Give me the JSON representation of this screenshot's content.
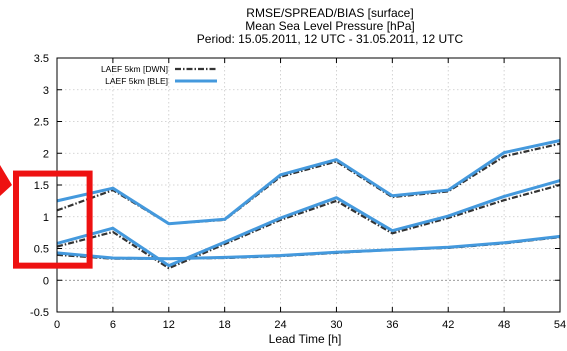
{
  "chart_data": {
    "type": "line",
    "title_lines": [
      "RMSE/SPREAD/BIAS [surface]",
      "Mean Sea Level Pressure [hPa]",
      "Period: 15.05.2011, 12 UTC - 31.05.2011, 12 UTC"
    ],
    "xlabel": "Lead Time [h]",
    "ylabel": "",
    "x": [
      0,
      6,
      12,
      18,
      24,
      30,
      36,
      42,
      48,
      54
    ],
    "x_ticks": [
      "0",
      "6",
      "12",
      "18",
      "24",
      "30",
      "36",
      "42",
      "48",
      "54"
    ],
    "y_ticks": [
      "-0.5",
      "0",
      "0.5",
      "1",
      "1.5",
      "2",
      "2.5",
      "3",
      "3.5"
    ],
    "xlim": [
      0,
      54
    ],
    "ylim": [
      -0.5,
      3.5
    ],
    "grid": true,
    "legend_position": "top-left",
    "series_styles": [
      {
        "name": "LAEF 5km [DWN]",
        "color": "#333333",
        "style": "dash-dot"
      },
      {
        "name": "LAEF 5km [BLE]",
        "color": "#4499dd",
        "style": "solid"
      }
    ],
    "series": [
      {
        "name": "LAEF 5km [DWN]",
        "metric_group": "upper",
        "values": [
          1.1,
          1.42,
          0.89,
          0.95,
          1.63,
          1.87,
          1.31,
          1.4,
          1.95,
          2.15
        ]
      },
      {
        "name": "LAEF 5km [BLE]",
        "metric_group": "upper",
        "values": [
          1.25,
          1.45,
          0.89,
          0.96,
          1.66,
          1.9,
          1.33,
          1.42,
          2.01,
          2.2
        ]
      },
      {
        "name": "LAEF 5km [DWN]",
        "metric_group": "middle",
        "values": [
          0.53,
          0.76,
          0.19,
          0.57,
          0.95,
          1.25,
          0.74,
          0.98,
          1.26,
          1.5
        ]
      },
      {
        "name": "LAEF 5km [BLE]",
        "metric_group": "middle",
        "values": [
          0.58,
          0.82,
          0.23,
          0.6,
          0.98,
          1.3,
          0.78,
          1.01,
          1.32,
          1.57
        ]
      },
      {
        "name": "LAEF 5km [DWN]",
        "metric_group": "lower",
        "values": [
          0.4,
          0.34,
          0.34,
          0.35,
          0.38,
          0.43,
          0.48,
          0.51,
          0.58,
          0.68
        ]
      },
      {
        "name": "LAEF 5km [BLE]",
        "metric_group": "lower",
        "values": [
          0.43,
          0.35,
          0.34,
          0.36,
          0.39,
          0.44,
          0.48,
          0.52,
          0.59,
          0.69
        ]
      }
    ],
    "annotation": {
      "shape": "red-rectangle",
      "color": "#ee1111",
      "x_range": [
        0,
        3.5
      ],
      "y_range": [
        0.23,
        1.68
      ]
    }
  }
}
